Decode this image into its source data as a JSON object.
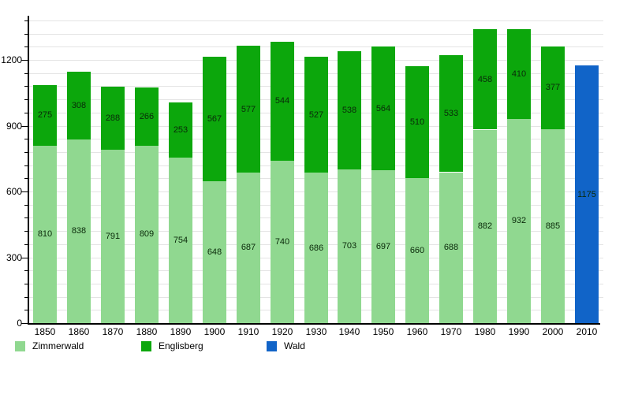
{
  "chart_data": {
    "type": "bar",
    "stacked": true,
    "title": "",
    "xlabel": "",
    "ylabel": "",
    "categories": [
      "1850",
      "1860",
      "1870",
      "1880",
      "1890",
      "1900",
      "1910",
      "1920",
      "1930",
      "1940",
      "1950",
      "1960",
      "1970",
      "1980",
      "1990",
      "2000",
      "2010"
    ],
    "series": [
      {
        "name": "Zimmerwald",
        "color": "#90d890",
        "values": [
          810,
          838,
          791,
          809,
          754,
          648,
          687,
          740,
          686,
          703,
          697,
          660,
          688,
          882,
          932,
          885,
          null
        ]
      },
      {
        "name": "Englisberg",
        "color": "#0ca70c",
        "values": [
          275,
          308,
          288,
          266,
          253,
          567,
          577,
          544,
          527,
          538,
          564,
          510,
          533,
          458,
          410,
          377,
          null
        ]
      },
      {
        "name": "Wald",
        "color": "#1164c8",
        "values": [
          null,
          null,
          null,
          null,
          null,
          null,
          null,
          null,
          null,
          null,
          null,
          null,
          null,
          null,
          null,
          null,
          1175
        ]
      }
    ],
    "y_major_ticks": [
      0,
      300,
      600,
      900,
      1200
    ],
    "y_minor_step": 60,
    "ylim": [
      0,
      1380
    ],
    "grid": true,
    "value_labels": true,
    "legend_position": "bottom",
    "legend_labels": [
      "Zimmerwald",
      "Englisberg",
      "Wald"
    ]
  },
  "colors": {
    "background": "#ffffff",
    "gridline": "#e4e4e4",
    "axis": "#000000",
    "label_text": "#000000"
  }
}
